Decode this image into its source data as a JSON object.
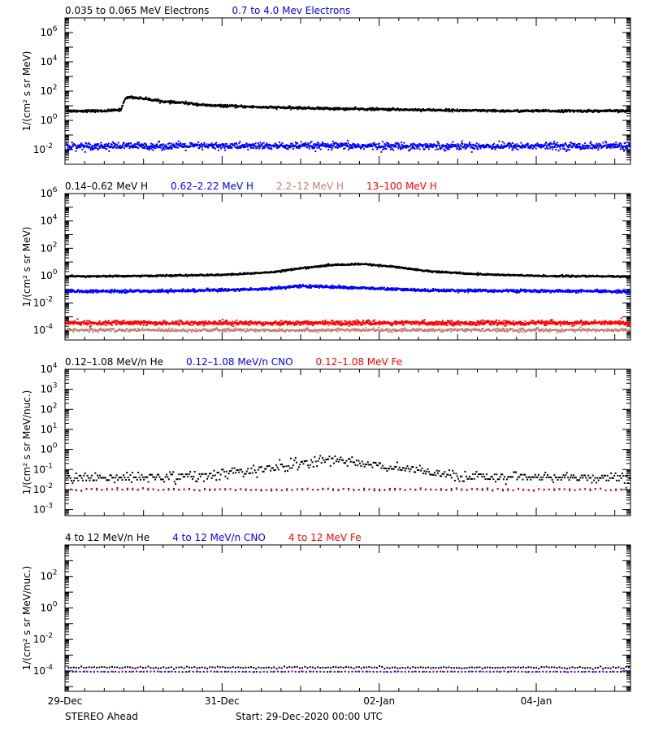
{
  "chart_data": [
    {
      "type": "scatter",
      "ylabel": "1/(cm² s sr MeV)",
      "ylim": [
        0.001,
        10000000
      ],
      "log_y": true,
      "y_ticks": [
        {
          "exp": "6",
          "value": 1000000
        },
        {
          "exp": "4",
          "value": 10000
        },
        {
          "exp": "2",
          "value": 100
        },
        {
          "exp": "0",
          "value": 1
        },
        {
          "exp": "-2",
          "value": 0.01
        }
      ],
      "series": [
        {
          "name": "0.035 to 0.065 MeV Electrons",
          "color": "#000000",
          "profile": [
            [
              0,
              5
            ],
            [
              0.5,
              5
            ],
            [
              0.7,
              6
            ],
            [
              0.75,
              30
            ],
            [
              0.8,
              45
            ],
            [
              1.0,
              35
            ],
            [
              1.3,
              20
            ],
            [
              1.5,
              18
            ],
            [
              1.8,
              12
            ],
            [
              2.5,
              9
            ],
            [
              3.5,
              7
            ],
            [
              4.5,
              6
            ],
            [
              5.5,
              5
            ],
            [
              6,
              5
            ],
            [
              7.2,
              5
            ]
          ]
        },
        {
          "name": "0.7 to 4.0 Mev Electrons",
          "color": "#0000ff",
          "profile": [
            [
              0,
              0.02
            ],
            [
              7.2,
              0.02
            ]
          ]
        }
      ]
    },
    {
      "type": "scatter",
      "ylabel": "1/(cm² s sr MeV)",
      "ylim": [
        2e-05,
        1000000
      ],
      "log_y": true,
      "y_ticks": [
        {
          "exp": "6",
          "value": 1000000
        },
        {
          "exp": "4",
          "value": 10000
        },
        {
          "exp": "2",
          "value": 100
        },
        {
          "exp": "0",
          "value": 1
        },
        {
          "exp": "-2",
          "value": 0.01
        },
        {
          "exp": "-4",
          "value": 0.0001
        }
      ],
      "series": [
        {
          "name": "0.14–0.62 MeV H",
          "color": "#000000",
          "profile": [
            [
              0,
              1
            ],
            [
              1,
              1.1
            ],
            [
              2,
              1.3
            ],
            [
              2.6,
              2
            ],
            [
              3,
              4
            ],
            [
              3.4,
              7
            ],
            [
              3.8,
              8
            ],
            [
              4.2,
              5
            ],
            [
              4.6,
              2.5
            ],
            [
              5.2,
              1.5
            ],
            [
              6,
              1.1
            ],
            [
              7.2,
              1
            ]
          ]
        },
        {
          "name": "0.62–2.22 MeV H",
          "color": "#0000ff",
          "profile": [
            [
              0,
              0.08
            ],
            [
              1.5,
              0.09
            ],
            [
              2.5,
              0.12
            ],
            [
              3.0,
              0.2
            ],
            [
              3.3,
              0.18
            ],
            [
              3.8,
              0.14
            ],
            [
              4.5,
              0.1
            ],
            [
              5.5,
              0.09
            ],
            [
              7.2,
              0.08
            ]
          ]
        },
        {
          "name": "2.2–12 MeV H",
          "color": "#c08070",
          "profile": [
            [
              0,
              0.00012
            ],
            [
              7.2,
              0.00012
            ]
          ]
        },
        {
          "name": "13–100 MeV H",
          "color": "#ff0000",
          "profile": [
            [
              0,
              0.0004
            ],
            [
              7.2,
              0.0004
            ]
          ]
        }
      ]
    },
    {
      "type": "scatter",
      "ylabel": "1/(cm² s sr MeV/nuc.)",
      "ylim": [
        0.0005,
        10000
      ],
      "log_y": true,
      "y_ticks": [
        {
          "exp": "4",
          "value": 10000
        },
        {
          "exp": "3",
          "value": 1000
        },
        {
          "exp": "2",
          "value": 100
        },
        {
          "exp": "1",
          "value": 10
        },
        {
          "exp": "0",
          "value": 1
        },
        {
          "exp": "-1",
          "value": 0.1
        },
        {
          "exp": "-2",
          "value": 0.01
        },
        {
          "exp": "-3",
          "value": 0.001
        }
      ],
      "series": [
        {
          "name": "0.12–1.08 MeV/n He",
          "color": "#000000",
          "profile": [
            [
              0,
              0.04
            ],
            [
              1.8,
              0.05
            ],
            [
              2.4,
              0.1
            ],
            [
              3.0,
              0.2
            ],
            [
              3.4,
              0.4
            ],
            [
              3.8,
              0.2
            ],
            [
              4.2,
              0.15
            ],
            [
              4.5,
              0.1
            ],
            [
              5,
              0.05
            ],
            [
              7.2,
              0.04
            ]
          ]
        },
        {
          "name": "0.12–1.08 MeV/n CNO",
          "color": "#0000ff",
          "profile": [
            [
              0,
              0.011
            ],
            [
              7.2,
              0.011
            ]
          ]
        },
        {
          "name": "0.12–1.08 MeV Fe",
          "color": "#ff0000",
          "profile": [
            [
              0,
              0.011
            ],
            [
              7.2,
              0.011
            ]
          ]
        }
      ]
    },
    {
      "type": "scatter",
      "ylabel": "1/(cm² s sr MeV/nuc.)",
      "ylim": [
        5e-06,
        10000
      ],
      "log_y": true,
      "y_ticks": [
        {
          "exp": "2",
          "value": 100
        },
        {
          "exp": "0",
          "value": 1
        },
        {
          "exp": "-2",
          "value": 0.01
        },
        {
          "exp": "-4",
          "value": 0.0001
        }
      ],
      "series": [
        {
          "name": "4 to 12 MeV/n He",
          "color": "#000000",
          "profile": [
            [
              0,
              0.00018
            ],
            [
              7.2,
              0.00018
            ]
          ]
        },
        {
          "name": "4 to 12 MeV/n CNO",
          "color": "#0000ff",
          "profile": [
            [
              0,
              0.0001
            ],
            [
              7.2,
              0.0001
            ]
          ]
        },
        {
          "name": "4 to 12 MeV Fe",
          "color": "#ff0000",
          "profile": [
            [
              0,
              0.0001
            ],
            [
              7.2,
              0.0001
            ]
          ]
        }
      ]
    }
  ],
  "x_axis": {
    "range_days": [
      0,
      7.2
    ],
    "ticks": [
      {
        "label": "29-Dec",
        "day": 0
      },
      {
        "label": "31-Dec",
        "day": 2
      },
      {
        "label": "02-Jan",
        "day": 4
      },
      {
        "label": "04-Jan",
        "day": 6
      }
    ]
  },
  "footer": {
    "spacecraft": "STEREO Ahead",
    "start": "Start: 29-Dec-2020 00:00 UTC"
  }
}
